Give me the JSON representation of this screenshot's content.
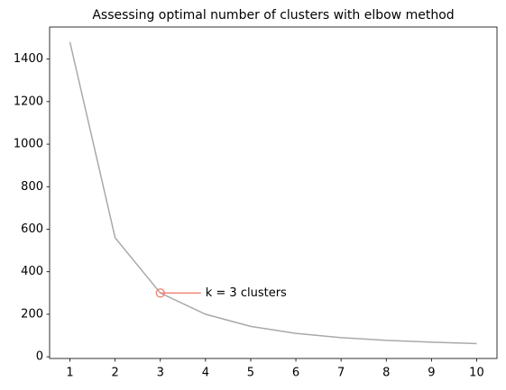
{
  "chart_data": {
    "type": "line",
    "title": "Assessing optimal number of clusters with elbow method",
    "x": [
      1,
      2,
      3,
      4,
      5,
      6,
      7,
      8,
      9,
      10
    ],
    "series": [
      {
        "color": "#a9a9a9",
        "values": [
          1480,
          560,
          300,
          200,
          143,
          110,
          90,
          77,
          69,
          62
        ]
      }
    ],
    "xlim": [
      0.55,
      10.45
    ],
    "xticks": [
      1,
      2,
      3,
      4,
      5,
      6,
      7,
      8,
      9,
      10
    ],
    "ylim": [
      -8,
      1551
    ],
    "yticks": [
      0,
      200,
      400,
      600,
      800,
      1000,
      1200,
      1400
    ],
    "grid": false,
    "annotation": {
      "text": "k = 3 clusters",
      "x": 3,
      "color": "#f08070"
    }
  }
}
